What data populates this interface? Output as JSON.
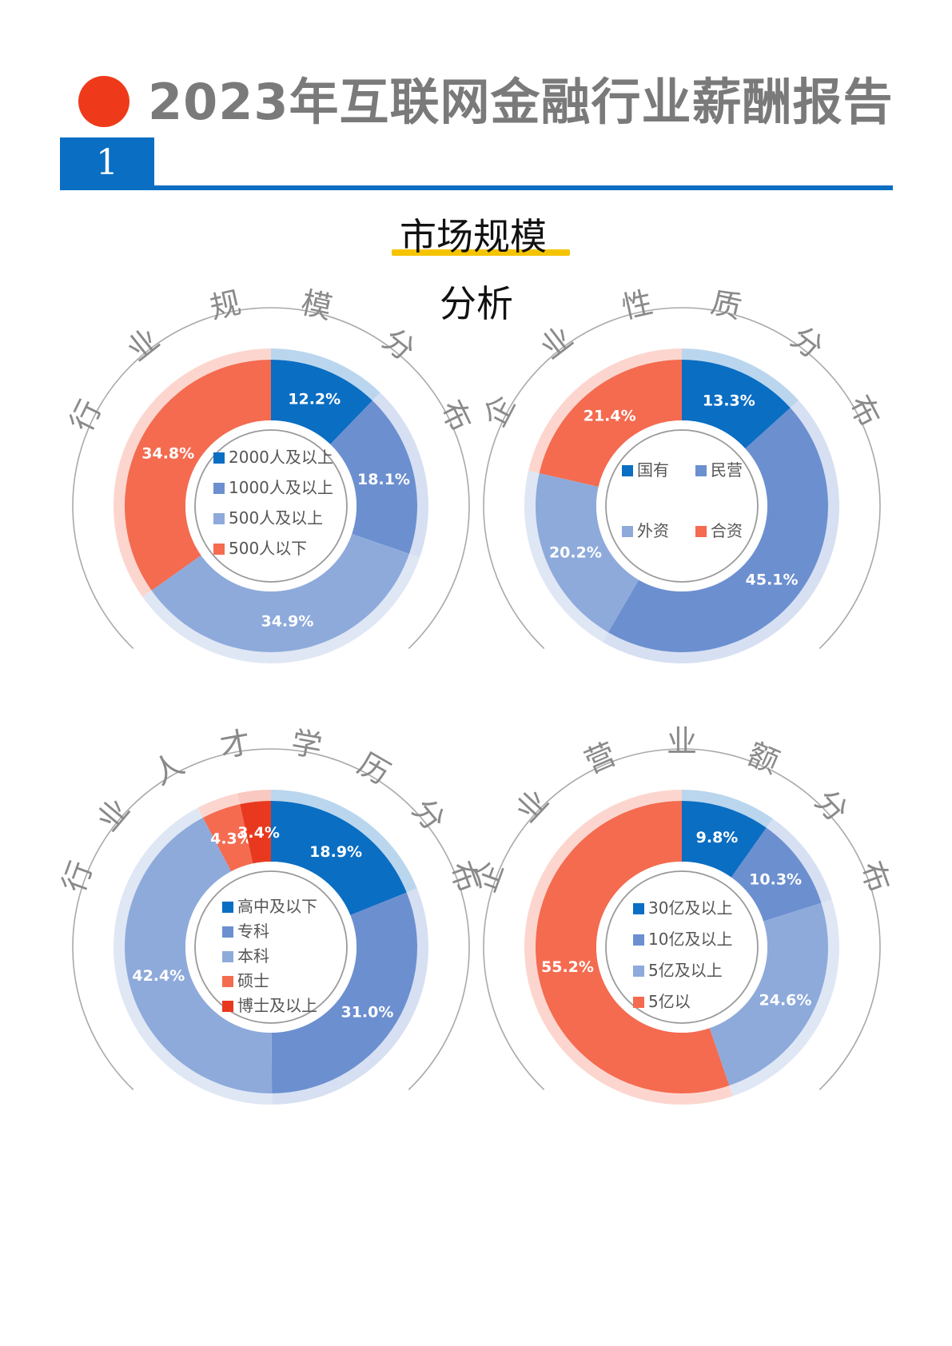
{
  "header": {
    "title": "2023年互联网金融行业薪酬报告",
    "page_number": "1",
    "section_title_line1": "市场规模",
    "section_title_line2": "分析"
  },
  "colors": {
    "dark_blue": "#0a6ec3",
    "mid_blue": "#6c8fd0",
    "light_blue": "#8eaadb",
    "orange": "#f46b50",
    "red": "#e8391f",
    "accent_red": "#ee3a1b",
    "underline_yellow": "#f5c400"
  },
  "chart_data": [
    {
      "type": "pie",
      "title": "行业规模分布",
      "categories": [
        "2000人及以上",
        "1000人及以上",
        "500人及以上",
        "500人以下"
      ],
      "values": [
        12.2,
        18.1,
        34.9,
        34.8
      ],
      "value_labels": [
        "12.2%",
        "18.1%",
        "34.9%",
        "34.8%"
      ],
      "colors": [
        "#0a6ec3",
        "#6c8fd0",
        "#8eaadb",
        "#f46b50"
      ],
      "legend": "center"
    },
    {
      "type": "pie",
      "title": "企业性质分布",
      "categories": [
        "国有",
        "民营",
        "外资",
        "合资"
      ],
      "values": [
        13.3,
        45.1,
        20.2,
        21.4
      ],
      "value_labels": [
        "13.3%",
        "45.1%",
        "20.2%",
        "21.4%"
      ],
      "colors": [
        "#0a6ec3",
        "#6c8fd0",
        "#8eaadb",
        "#f46b50"
      ],
      "legend": "center-grid"
    },
    {
      "type": "pie",
      "title": "行业人才学历分布",
      "categories": [
        "高中及以下",
        "专科",
        "本科",
        "硕士",
        "博士及以上"
      ],
      "values": [
        18.9,
        31.0,
        42.4,
        4.3,
        3.4
      ],
      "value_labels": [
        "18.9%",
        "31.0%",
        "42.4%",
        "4.3%",
        "3.4%"
      ],
      "colors": [
        "#0a6ec3",
        "#6c8fd0",
        "#8eaadb",
        "#f46b50",
        "#e8391f"
      ],
      "legend": "center"
    },
    {
      "type": "pie",
      "title": "企业营业额分布",
      "categories": [
        "30亿及以上",
        "10亿及以上",
        "5亿及以上",
        "5亿以"
      ],
      "values": [
        9.8,
        10.3,
        24.6,
        55.2
      ],
      "value_labels": [
        "9.8%",
        "10.3%",
        "24.6%",
        "55.2%"
      ],
      "colors": [
        "#0a6ec3",
        "#6c8fd0",
        "#8eaadb",
        "#f46b50"
      ],
      "legend": "center"
    }
  ]
}
